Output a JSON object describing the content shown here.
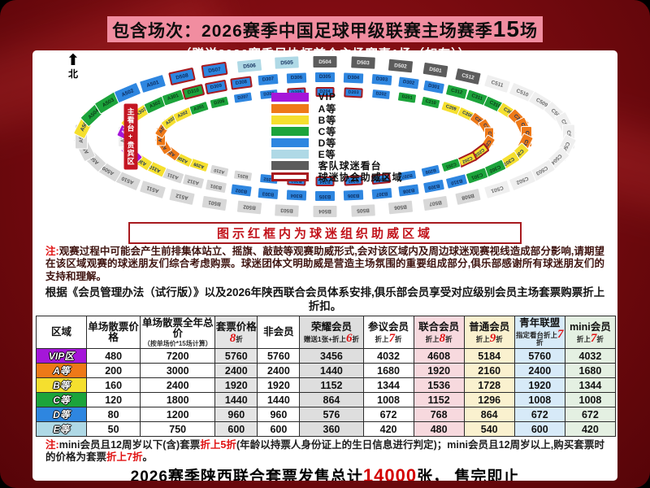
{
  "title": {
    "main": "包含场次：2026赛季中国足球甲级联赛主场赛季",
    "count": "15",
    "unit": "场",
    "subtitle": "（赠送2026赛季足协杯首个主场赛事1场（如有））"
  },
  "map": {
    "north_label": "北",
    "vip_banner": "主看台+贵宾区",
    "legend": [
      {
        "label": "VIP",
        "color": "#A516D9"
      },
      {
        "label": "A等",
        "color": "#EE7918"
      },
      {
        "label": "B等",
        "color": "#F5DF2E"
      },
      {
        "label": "C等",
        "color": "#1CA43B"
      },
      {
        "label": "D等",
        "color": "#2E86E0"
      },
      {
        "label": "E等",
        "color": "#AFD9E6"
      },
      {
        "label": "客队球迷看台",
        "color": "#5C5C5C"
      },
      {
        "label": "球迷协会助威区域",
        "frame": true
      }
    ],
    "rings": [
      [
        {
          "id": "D504",
          "t": "dgray"
        },
        {
          "id": "D503",
          "t": "dgray"
        },
        {
          "id": "D502",
          "t": "dgray"
        },
        {
          "id": "D501",
          "t": "dgray"
        },
        {
          "id": "C512",
          "t": "dgray"
        },
        {
          "id": "C511",
          "t": "w"
        },
        {
          "id": "C510",
          "t": "w"
        },
        {
          "id": "C509",
          "t": "w"
        },
        {
          "id": "C508",
          "t": "w"
        },
        {
          "id": "C507",
          "t": "w"
        },
        {
          "id": "C506",
          "t": "w"
        },
        {
          "id": "C505",
          "t": "w"
        },
        {
          "id": "C504",
          "t": "w"
        },
        {
          "id": "C503",
          "t": "w"
        },
        {
          "id": "C502",
          "t": "w"
        },
        {
          "id": "C501",
          "t": "w"
        },
        {
          "id": "B508",
          "t": "lg"
        },
        {
          "id": "B507",
          "t": "lg"
        },
        {
          "id": "B506",
          "t": "lg"
        },
        {
          "id": "B505",
          "t": "lg"
        },
        {
          "id": "B504",
          "t": "lg"
        },
        {
          "id": "B503",
          "t": "lg"
        },
        {
          "id": "B502",
          "t": "lg"
        },
        {
          "id": "B501",
          "t": "lg"
        },
        {
          "id": "A512",
          "t": "lg"
        },
        {
          "id": "A511",
          "t": "lg"
        },
        {
          "id": "A510",
          "t": "lg"
        },
        {
          "id": "A509",
          "t": "lg"
        },
        {
          "id": "A508",
          "t": "lg"
        },
        {
          "id": "A507",
          "t": "lg"
        },
        {
          "id": "A506",
          "t": "lg"
        },
        {
          "id": "A505",
          "t": "y"
        },
        {
          "id": "A504",
          "t": "g"
        },
        {
          "id": "A503",
          "t": "g"
        },
        {
          "id": "A502",
          "t": "b"
        },
        {
          "id": "A501",
          "t": "b"
        },
        {
          "id": "D508",
          "t": "b",
          "f": true
        },
        {
          "id": "D507",
          "t": "b",
          "f": true
        },
        {
          "id": "D506",
          "t": "c"
        },
        {
          "id": "D505",
          "t": "c"
        }
      ],
      [
        {
          "id": "D305",
          "t": "b"
        },
        {
          "id": "D304",
          "t": "b"
        },
        {
          "id": "D303",
          "t": "b"
        },
        {
          "id": "D302",
          "t": "b"
        },
        {
          "id": "D301",
          "t": "b"
        },
        {
          "id": "C312",
          "t": "g"
        },
        {
          "id": "C311",
          "t": "g"
        },
        {
          "id": "C310",
          "t": "g"
        },
        {
          "id": "C309",
          "t": "y"
        },
        {
          "id": "C308",
          "t": "o"
        },
        {
          "id": "C307",
          "t": "o"
        },
        {
          "id": "C306",
          "t": "o"
        },
        {
          "id": "C305",
          "t": "o"
        },
        {
          "id": "C304",
          "t": "y"
        },
        {
          "id": "C303",
          "t": "y"
        },
        {
          "id": "C302",
          "t": "g"
        },
        {
          "id": "C301",
          "t": "g"
        },
        {
          "id": "B310",
          "t": "b"
        },
        {
          "id": "B309",
          "t": "b"
        },
        {
          "id": "B308",
          "t": "b"
        },
        {
          "id": "B307",
          "t": "b"
        },
        {
          "id": "B306",
          "t": "b"
        },
        {
          "id": "B305",
          "t": "b"
        },
        {
          "id": "B304",
          "t": "b"
        },
        {
          "id": "B303",
          "t": "b"
        },
        {
          "id": "B302",
          "t": "b"
        },
        {
          "id": "B301",
          "t": "lg"
        },
        {
          "id": "A312",
          "t": "lg"
        },
        {
          "id": "A311",
          "t": "lg"
        },
        {
          "id": "A310",
          "t": "y"
        },
        {
          "id": "A309",
          "t": "y"
        },
        {
          "id": "A308",
          "t": "vip"
        },
        {
          "id": "A307",
          "t": "w"
        },
        {
          "id": "A306",
          "t": "w"
        },
        {
          "id": "A305",
          "t": "vip"
        },
        {
          "id": "A304",
          "t": "y"
        },
        {
          "id": "A303",
          "t": "y"
        },
        {
          "id": "A302",
          "t": "g"
        },
        {
          "id": "A301",
          "t": "g"
        },
        {
          "id": "D310",
          "t": "g",
          "f": true
        },
        {
          "id": "D309",
          "t": "b",
          "f": true
        },
        {
          "id": "D308",
          "t": "b",
          "f": true
        },
        {
          "id": "D307",
          "t": "b"
        },
        {
          "id": "D306",
          "t": "b"
        }
      ],
      [
        {
          "id": "D204",
          "t": "b",
          "f": true
        },
        {
          "id": "D203",
          "t": "b",
          "f": true
        },
        {
          "id": "D202",
          "t": "b"
        },
        {
          "id": "D201",
          "t": "g"
        },
        {
          "id": "C210",
          "t": "g"
        },
        {
          "id": "C209",
          "t": "y"
        },
        {
          "id": "C208",
          "t": "y"
        },
        {
          "id": "C207",
          "t": "o"
        },
        {
          "id": "C206",
          "t": "o"
        },
        {
          "id": "C205",
          "t": "o"
        },
        {
          "id": "C204",
          "t": "o"
        },
        {
          "id": "C203",
          "t": "y",
          "f": true
        },
        {
          "id": "C202",
          "t": "y",
          "f": true
        },
        {
          "id": "C201",
          "t": "g"
        },
        {
          "id": "B208",
          "t": "b"
        },
        {
          "id": "B207",
          "t": "b"
        },
        {
          "id": "B206",
          "t": "b",
          "f": true
        },
        {
          "id": "B205",
          "t": "b",
          "f": true
        },
        {
          "id": "B204",
          "t": "b",
          "f": true
        },
        {
          "id": "B203",
          "t": "b",
          "f": true
        },
        {
          "id": "B202",
          "t": "b"
        },
        {
          "id": "B201",
          "t": "lg"
        },
        {
          "id": "A210",
          "t": "lg"
        },
        {
          "id": "A209",
          "t": "y"
        },
        {
          "id": "A208",
          "t": "y"
        },
        {
          "id": "A207",
          "t": "o"
        },
        {
          "id": "A206",
          "t": "o"
        },
        {
          "id": "A205",
          "t": "o"
        },
        {
          "id": "A204",
          "t": "o"
        },
        {
          "id": "A203",
          "t": "y"
        },
        {
          "id": "A202",
          "t": "y"
        },
        {
          "id": "A201",
          "t": "g"
        },
        {
          "id": "D208",
          "t": "g"
        },
        {
          "id": "D207",
          "t": "b"
        },
        {
          "id": "D206",
          "t": "b"
        },
        {
          "id": "D205",
          "t": "b",
          "f": true
        }
      ]
    ]
  },
  "banner": "图示红框内为球迷组织助威区域",
  "note1": {
    "label": "注:",
    "text": "观赛过程中可能会产生前排集体站立、摇旗、敲鼓等观赛助威形式,会对该区域内及周边球迷观赛视线造成部分影响,请期望在该区域观赛的球迷朋友们综合考虑购票。球迷团体文明助威是营造主场氛围的重要组成部分,俱乐部感谢所有球迷朋友们的支持和理解。"
  },
  "member_text": "根据《会员管理办法（试行版）》以及2026年陕西联合会员体系安排,俱乐部会员享受对应级别会员主场套票购票折上折扣。",
  "table": {
    "headers": [
      {
        "title": "区域"
      },
      {
        "title": "单场散票价格"
      },
      {
        "title": "单场散票全年总价",
        "note": "（按单场价*15场计算）"
      },
      {
        "title": "套票价格",
        "discount": "8折",
        "tint": "#E4E4E4"
      },
      {
        "title": "非会员"
      },
      {
        "title": "荣耀会员",
        "dnote": "赠送1张+",
        "discount": "折上6折",
        "tint": "#DEDEDE"
      },
      {
        "title": "参议会员",
        "discount": "折上7折"
      },
      {
        "title": "联合会员",
        "discount": "折上8折",
        "tint": "#F7D9DE"
      },
      {
        "title": "普通会员",
        "discount": "折上9折",
        "tint": "#FAF1CF"
      },
      {
        "title": "青年联盟",
        "dnote": "指定看台",
        "discount": "折上7折",
        "tint": "#D7EAF8"
      },
      {
        "title": "mini会员",
        "discount": "折上7折",
        "tint": "#E4F0E2"
      }
    ],
    "rows": [
      {
        "label": "VIP区",
        "color": "#A516D9",
        "values": [
          "480",
          "7200",
          "5760",
          "5760",
          "3456",
          "4032",
          "4608",
          "5184",
          "5760",
          "4032"
        ]
      },
      {
        "label": "A等",
        "color": "#EE7918",
        "values": [
          "200",
          "3000",
          "2400",
          "2400",
          "1440",
          "1680",
          "1920",
          "2160",
          "2400",
          "1680"
        ]
      },
      {
        "label": "B等",
        "color": "#F5DF2E",
        "values": [
          "160",
          "2400",
          "1920",
          "1920",
          "1152",
          "1344",
          "1536",
          "1728",
          "1920",
          "1344"
        ]
      },
      {
        "label": "C等",
        "color": "#1CA43B",
        "values": [
          "120",
          "1800",
          "1440",
          "1440",
          "864",
          "1008",
          "1152",
          "1296",
          "1008",
          "1008"
        ]
      },
      {
        "label": "D等",
        "color": "#2E86E0",
        "values": [
          "80",
          "1200",
          "960",
          "960",
          "576",
          "672",
          "768",
          "864",
          "672",
          "672"
        ]
      },
      {
        "label": "E等",
        "color": "#AFD9E6",
        "values": [
          "50",
          "750",
          "600",
          "600",
          "360",
          "420",
          "480",
          "540",
          "600",
          "420"
        ]
      }
    ]
  },
  "note2_segments": [
    {
      "t": "注:",
      "red": true
    },
    {
      "t": "mini会员且12周岁以下(含)套票"
    },
    {
      "t": "折上5折",
      "red": true
    },
    {
      "t": "(年龄以持票人身份证上的生日信息进行判定)；mini会员且12周岁以上,购买套票时的价格为套票"
    },
    {
      "t": "折上7折",
      "red": true
    },
    {
      "t": "。"
    }
  ],
  "footer_segments": [
    {
      "t": "2026赛季陕西联合套票发售总计"
    },
    {
      "t": "14000",
      "big": true
    },
    {
      "t": "张， 售完即止"
    }
  ]
}
